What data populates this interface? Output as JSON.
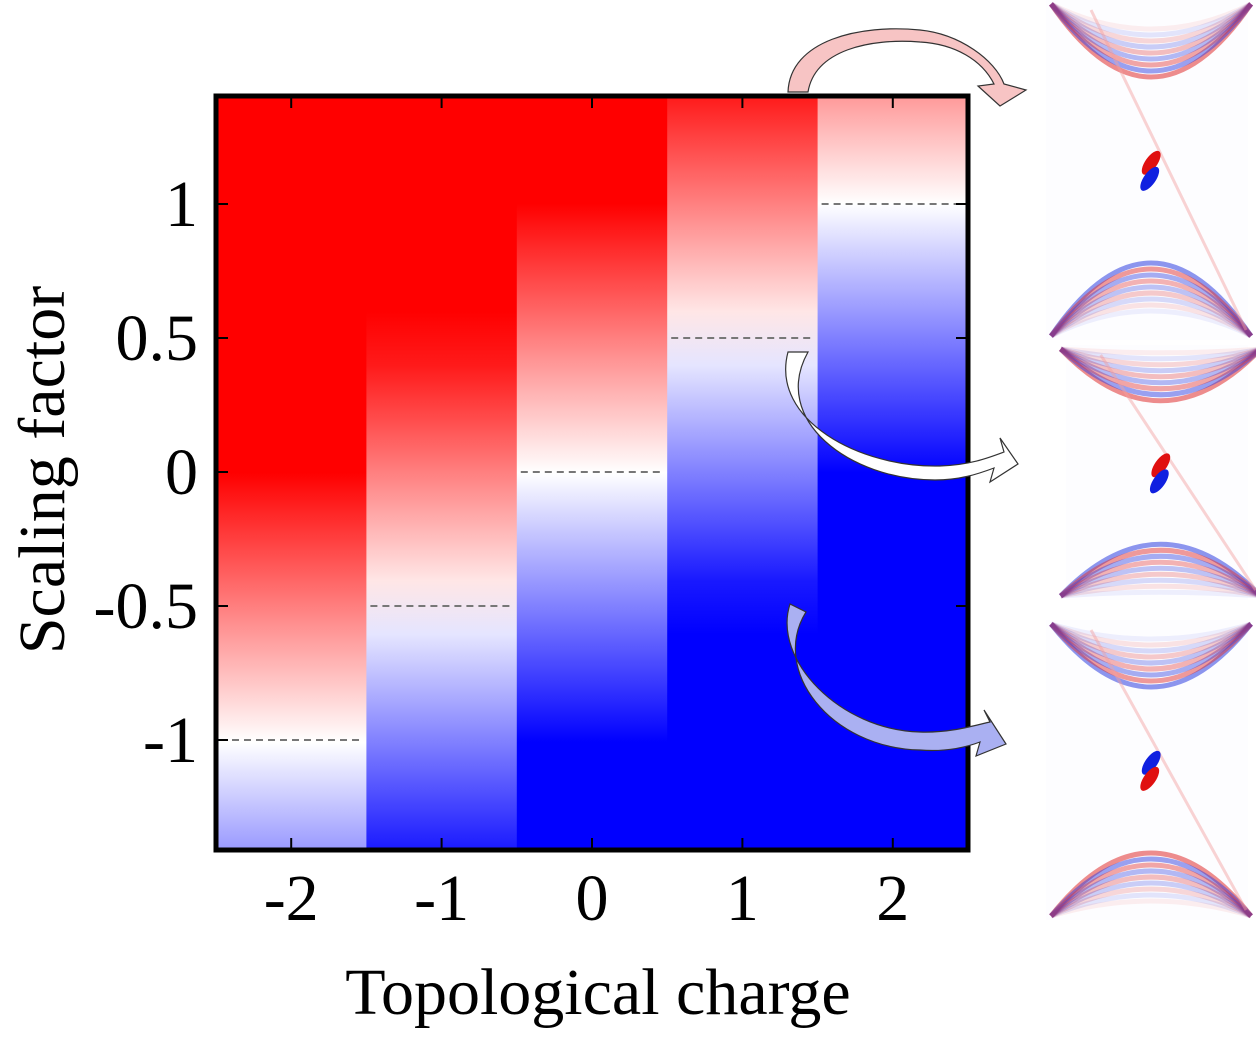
{
  "chart_data": {
    "type": "heatmap",
    "xlabel": "Topological charge",
    "ylabel": "Scaling factor",
    "x_ticks": [
      "-2",
      "-1",
      "0",
      "1",
      "2"
    ],
    "y_ticks": [
      "1",
      "0.5",
      "0",
      "-0.5",
      "-1"
    ],
    "x_categories": [
      -2,
      -1,
      0,
      1,
      2
    ],
    "ylim": [
      -1.4,
      1.4
    ],
    "colormap": {
      "positive": "#ff0000",
      "zero": "#ffffff",
      "negative": "#0000ff"
    },
    "boundary_line_color": "#777777",
    "columns": [
      {
        "charge": -2,
        "zero_crossing": -1.0
      },
      {
        "charge": -1,
        "zero_crossing": -0.5
      },
      {
        "charge": 0,
        "zero_crossing": 0.0
      },
      {
        "charge": 1,
        "zero_crossing": 0.5
      },
      {
        "charge": 2,
        "zero_crossing": 1.0
      }
    ],
    "insets": [
      {
        "scaling_factor": 1.0,
        "arrow_color": "#f7c4c4"
      },
      {
        "scaling_factor": 0.0,
        "arrow_color": "#ffffff"
      },
      {
        "scaling_factor": -1.0,
        "arrow_color": "#aab0f2"
      }
    ]
  }
}
